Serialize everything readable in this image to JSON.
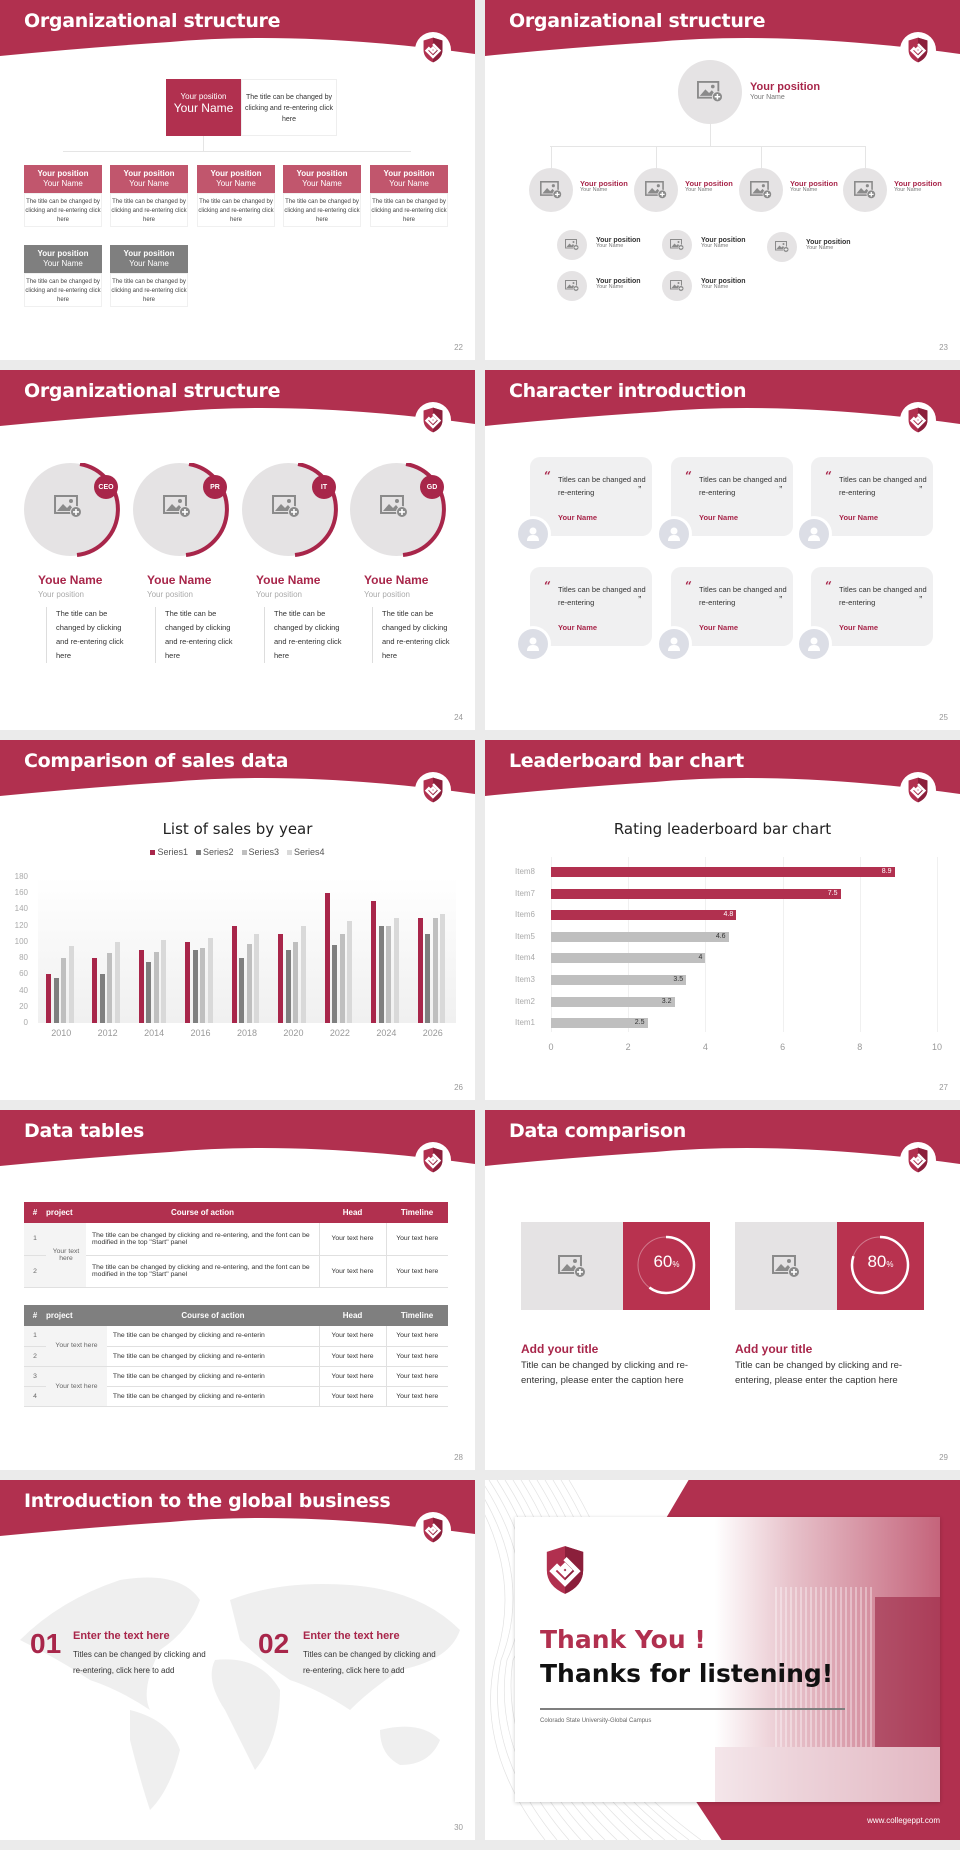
{
  "brand": {
    "accent": "#b1304f",
    "accent_dark": "#a8264a",
    "gray_dark": "#7f7f7f",
    "gray_mid": "#bfbfbf",
    "gray_light": "#d9d9d9"
  },
  "slides": [
    {
      "page": "22",
      "title": "Organizational structure",
      "top": {
        "position": "Your position",
        "name": "Your Name",
        "desc": "The title can be changed by clicking and re-entering click here"
      },
      "boxes": [
        {
          "position": "Your position",
          "name": "Your Name",
          "desc": "The title can be changed by clicking and re-entering click here",
          "color": "red"
        },
        {
          "position": "Your position",
          "name": "Your Name",
          "desc": "The title can be changed by clicking and re-entering click here",
          "color": "red"
        },
        {
          "position": "Your position",
          "name": "Your Name",
          "desc": "The title can be changed by clicking and re-entering click here",
          "color": "red"
        },
        {
          "position": "Your position",
          "name": "Your Name",
          "desc": "The title can be changed by clicking and re-entering click here",
          "color": "red"
        },
        {
          "position": "Your position",
          "name": "Your Name",
          "desc": "The title can be changed by clicking and re-entering click here",
          "color": "red"
        },
        {
          "position": "Your position",
          "name": "Your Name",
          "desc": "The title can be changed by clicking and re-entering click here",
          "color": "gray"
        },
        {
          "position": "Your position",
          "name": "Your Name",
          "desc": "The title can be changed by clicking and re-entering click here",
          "color": "gray"
        }
      ]
    },
    {
      "page": "23",
      "title": "Organizational structure",
      "top": {
        "position": "Your position",
        "name": "Your Name"
      },
      "level2": [
        {
          "position": "Your position",
          "name": "Your Name"
        },
        {
          "position": "Your position",
          "name": "Your Name"
        },
        {
          "position": "Your position",
          "name": "Your Name"
        },
        {
          "position": "Your position",
          "name": "Your Name"
        }
      ],
      "level3": [
        {
          "position": "Your position",
          "name": "Your Name"
        },
        {
          "position": "Your position",
          "name": "Your Name"
        },
        {
          "position": "Your position",
          "name": "Your Name"
        },
        {
          "position": "Your position",
          "name": "Your Name"
        },
        {
          "position": "Your position",
          "name": "Your Name"
        }
      ]
    },
    {
      "page": "24",
      "title": "Organizational structure",
      "people": [
        {
          "tag": "CEO",
          "name": "Youe Name",
          "position": "Your position",
          "desc": "The title can be changed by clicking and re-entering click here"
        },
        {
          "tag": "PR",
          "name": "Youe Name",
          "position": "Your position",
          "desc": "The title can be changed by clicking and re-entering click here"
        },
        {
          "tag": "IT",
          "name": "Youe Name",
          "position": "Your position",
          "desc": "The title can be changed by clicking and re-entering click here"
        },
        {
          "tag": "GD",
          "name": "Youe Name",
          "position": "Your position",
          "desc": "The title can be changed by clicking and re-entering click here"
        }
      ]
    },
    {
      "page": "25",
      "title": "Character introduction",
      "cards": [
        {
          "text": "Titles can be changed and re-entering",
          "name": "Your Name"
        },
        {
          "text": "Titles can be changed and re-entering",
          "name": "Your Name"
        },
        {
          "text": "Titles can be changed and re-entering",
          "name": "Your Name"
        },
        {
          "text": "Titles can be changed and re-entering",
          "name": "Your Name"
        },
        {
          "text": "Titles can be changed and re-entering",
          "name": "Your Name"
        },
        {
          "text": "Titles can be changed and re-entering",
          "name": "Your Name"
        }
      ],
      "quote_open": "“",
      "quote_close": "”"
    },
    {
      "page": "26",
      "title": "Comparison of sales data"
    },
    {
      "page": "27",
      "title": "Leaderboard bar chart"
    },
    {
      "page": "28",
      "title": "Data tables",
      "table1": {
        "headers": [
          "#",
          "project",
          "Course of action",
          "Head",
          "Timeline"
        ],
        "project": "Your text here",
        "rows": [
          {
            "n": "1",
            "action": "The title can be changed by clicking and re-entering, and the font can be modified in the top \"Start\" panel",
            "head": "Your text here",
            "timeline": "Your text here"
          },
          {
            "n": "2",
            "action": "The title can be changed by clicking and re-entering, and the font can be modified in the top \"Start\" panel",
            "head": "Your text here",
            "timeline": "Your text here"
          }
        ]
      },
      "table2": {
        "headers": [
          "#",
          "project",
          "Course of action",
          "Head",
          "Timeline"
        ],
        "projects": [
          "Your text here",
          "Your text here"
        ],
        "rows": [
          {
            "n": "1",
            "action": "The title can be changed by clicking and re-enterin",
            "head": "Your text here",
            "timeline": "Your text here"
          },
          {
            "n": "2",
            "action": "The title can be changed by clicking and re-enterin",
            "head": "Your text here",
            "timeline": "Your text here"
          },
          {
            "n": "3",
            "action": "The title can be changed by clicking and re-enterin",
            "head": "Your text here",
            "timeline": "Your text here"
          },
          {
            "n": "4",
            "action": "The title can be changed by clicking and re-enterin",
            "head": "Your text here",
            "timeline": "Your text here"
          }
        ]
      }
    },
    {
      "page": "29",
      "title": "Data comparison",
      "items": [
        {
          "value": "60",
          "unit": "%",
          "title": "Add your title",
          "desc": "Title can be changed by clicking and re-entering, please enter the caption here"
        },
        {
          "value": "80",
          "unit": "%",
          "title": "Add your title",
          "desc": "Title can be changed by clicking and re-entering, please enter the caption here"
        }
      ]
    },
    {
      "page": "30",
      "title": "Introduction to the global business",
      "items": [
        {
          "num": "01",
          "title": "Enter the text here",
          "desc": "Titles can be changed by clicking and re-entering, click here to add"
        },
        {
          "num": "02",
          "title": "Enter the text here",
          "desc": "Titles can be changed by clicking and re-entering, click here to add"
        }
      ]
    },
    {
      "title_red": "Thank You !",
      "title_black": "Thanks for listening!",
      "subtitle": "Colorado State University-Global Campus",
      "website": "www.collegeppt.com"
    }
  ],
  "chart_data": [
    {
      "type": "bar",
      "title": "List of sales by year",
      "categories": [
        "2010",
        "2012",
        "2014",
        "2016",
        "2018",
        "2020",
        "2022",
        "2024",
        "2026"
      ],
      "series": [
        {
          "name": "Series1",
          "color": "#a8264a",
          "values": [
            60,
            80,
            90,
            100,
            120,
            110,
            160,
            150,
            130
          ]
        },
        {
          "name": "Series2",
          "color": "#7f7f7f",
          "values": [
            55,
            60,
            75,
            90,
            80,
            90,
            96,
            120,
            110
          ]
        },
        {
          "name": "Series3",
          "color": "#bfbfbf",
          "values": [
            80,
            86,
            88,
            92,
            98,
            100,
            110,
            120,
            130
          ]
        },
        {
          "name": "Series4",
          "color": "#d9d9d9",
          "values": [
            95,
            100,
            102,
            105,
            110,
            120,
            126,
            130,
            135
          ]
        }
      ],
      "yticks": [
        "180",
        "160",
        "140",
        "120",
        "100",
        "80",
        "60",
        "40",
        "20",
        "0"
      ],
      "ylim": [
        0,
        180
      ],
      "xlabel": "",
      "ylabel": "",
      "legend_position": "top",
      "grid": true
    },
    {
      "type": "bar",
      "orientation": "horizontal",
      "title": "Rating leaderboard bar chart",
      "categories": [
        "Item8",
        "Item7",
        "Item6",
        "Item5",
        "Item4",
        "Item3",
        "Item2",
        "Item1"
      ],
      "values": [
        8.9,
        7.5,
        4.8,
        4.6,
        4,
        3.5,
        3.2,
        2.5
      ],
      "labels": [
        "8.9",
        "7.5",
        "4.8",
        "4.6",
        "4",
        "3.5",
        "3.2",
        "2.5"
      ],
      "highlight": [
        true,
        true,
        true,
        false,
        false,
        false,
        false,
        false
      ],
      "xticks": [
        "0",
        "2",
        "4",
        "6",
        "8",
        "10"
      ],
      "xlim": [
        0,
        10
      ],
      "grid": true
    }
  ]
}
